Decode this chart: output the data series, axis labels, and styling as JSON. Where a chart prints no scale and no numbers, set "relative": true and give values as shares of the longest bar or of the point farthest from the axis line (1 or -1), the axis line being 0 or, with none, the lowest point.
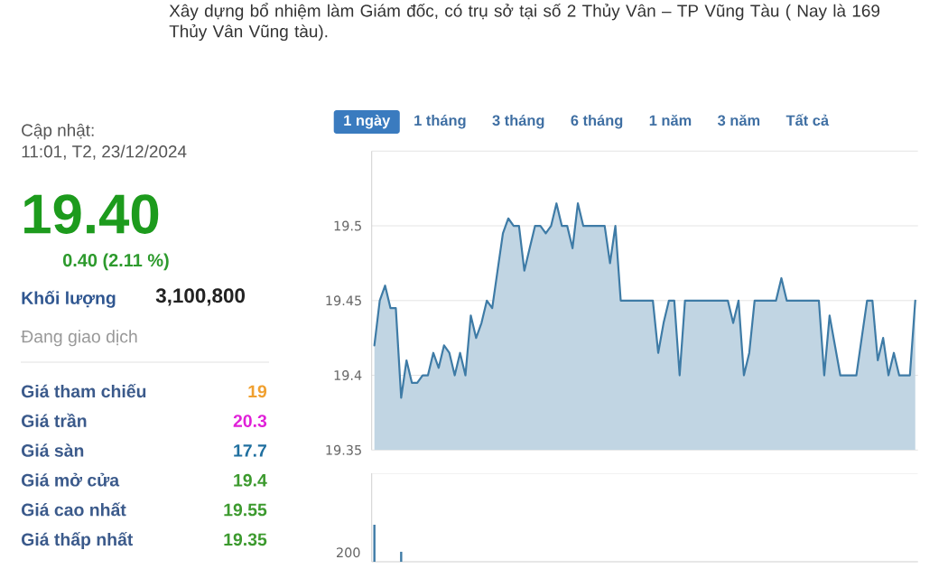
{
  "chart_data": [
    {
      "type": "other",
      "annotations": [
        "Xây dựng bổ nhiệm làm Giám đốc, có trụ sở tại số 2 Thủy Vân – TP Vũng Tàu ( Nay là 169 Thủy Vân Vũng tàu).",
        "Cập nhật:",
        "11:01, T2, 23/12/2024",
        "19.40",
        "0.40 (2.11 %)",
        "Khối lượng",
        "3,100,800",
        "Đang giao dịch"
      ],
      "categories": [
        "Giá tham chiếu",
        "Giá trần",
        "Giá sàn",
        "Giá mở cửa",
        "Giá cao nhất",
        "Giá thấp nhất"
      ],
      "values": [
        19,
        20.3,
        17.7,
        19.4,
        19.55,
        19.35
      ],
      "colors": [
        "#f0a030",
        "#e020d8",
        "#1f6f9f",
        "#3c9a2e",
        "#3c9a2e",
        "#3c9a2e"
      ],
      "data_labels": true
    },
    {
      "type": "area",
      "annotations": [
        "1 ngày",
        "1 tháng",
        "3 tháng",
        "6 tháng",
        "1 năm",
        "3 năm",
        "Tất cả"
      ],
      "categories": [
        null,
        null,
        null,
        null,
        null,
        null,
        null,
        null,
        null,
        null,
        null,
        null,
        null,
        null,
        null,
        null,
        null,
        null,
        null,
        null,
        null,
        null,
        null,
        null,
        null,
        null,
        null,
        null,
        null,
        null,
        null,
        null,
        null,
        null,
        null,
        null,
        null,
        null,
        null,
        null,
        null,
        null,
        null,
        null,
        null,
        null,
        null,
        null,
        null,
        null,
        null,
        null,
        null,
        null,
        null,
        null,
        null,
        null,
        null,
        null,
        null,
        null,
        null,
        null,
        null,
        null,
        null,
        null,
        null,
        null,
        null,
        null,
        null,
        null,
        null,
        null,
        null,
        null,
        null,
        null,
        null,
        null,
        null,
        null,
        null,
        null,
        null,
        null,
        null,
        null,
        null,
        null,
        null,
        null,
        null,
        null,
        null,
        null,
        null,
        null,
        null,
        null
      ],
      "values": [
        19.42,
        19.45,
        19.46,
        19.445,
        19.445,
        19.385,
        19.41,
        19.395,
        19.395,
        19.4,
        19.4,
        19.415,
        19.405,
        19.42,
        19.415,
        19.4,
        19.415,
        19.4,
        19.44,
        19.425,
        19.435,
        19.45,
        19.445,
        19.47,
        19.495,
        19.505,
        19.5,
        19.5,
        19.47,
        19.485,
        19.5,
        19.5,
        19.495,
        19.5,
        19.515,
        19.5,
        19.5,
        19.485,
        19.515,
        19.5,
        19.5,
        19.5,
        19.5,
        19.5,
        19.475,
        19.5,
        19.45,
        19.45,
        19.45,
        19.45,
        19.45,
        19.45,
        19.45,
        19.415,
        19.435,
        19.45,
        19.45,
        19.4,
        19.45,
        19.45,
        19.45,
        19.45,
        19.45,
        19.45,
        19.45,
        19.45,
        19.45,
        19.435,
        19.45,
        19.4,
        19.415,
        19.45,
        19.45,
        19.45,
        19.45,
        19.45,
        19.465,
        19.45,
        19.45,
        19.45,
        19.45,
        19.45,
        19.45,
        19.45,
        19.4,
        19.44,
        19.42,
        19.4,
        19.4,
        19.4,
        19.4,
        19.425,
        19.45,
        19.45,
        19.41,
        19.425,
        19.4,
        19.415,
        19.4,
        19.4,
        19.4,
        19.45
      ],
      "color": "#3e7ba6",
      "ylim": [
        19.35,
        19.55
      ],
      "yticks": [
        19.35,
        19.4,
        19.45,
        19.5,
        {
          "value": 19.55,
          "label": null
        }
      ],
      "grid": "y",
      "tick_labels": "y"
    },
    {
      "type": "bar",
      "relative": true,
      "annotations": [
        "200"
      ],
      "categories": [
        null,
        null,
        null,
        null,
        null,
        null,
        null,
        null,
        null,
        null,
        null,
        null,
        null,
        null,
        null,
        null,
        null,
        null,
        null,
        null,
        null,
        null,
        null,
        null,
        null,
        null,
        null,
        null,
        null,
        null,
        null,
        null,
        null,
        null,
        null,
        null,
        null,
        null,
        null,
        null,
        null,
        null,
        null,
        null,
        null,
        null,
        null,
        null,
        null,
        null,
        null,
        null,
        null,
        null,
        null,
        null,
        null,
        null,
        null,
        null,
        null,
        null,
        null,
        null,
        null,
        null,
        null,
        null,
        null,
        null,
        null,
        null,
        null,
        null,
        null,
        null,
        null,
        null,
        null,
        null,
        null,
        null,
        null,
        null,
        null,
        null,
        null,
        null,
        null,
        null,
        null,
        null,
        null,
        null,
        null,
        null,
        null,
        null,
        null,
        null,
        null,
        null
      ],
      "values": [
        1,
        null,
        null,
        null,
        null,
        0.27,
        null,
        null,
        null,
        null,
        null,
        null,
        null,
        null,
        null,
        null,
        null,
        null,
        null,
        null,
        null,
        null,
        null,
        null,
        null,
        null,
        null,
        null,
        null,
        null,
        null,
        null,
        null,
        null,
        null,
        null,
        null,
        null,
        null,
        null,
        null,
        null,
        null,
        null,
        null,
        null,
        null,
        null,
        null,
        null,
        null,
        null,
        null,
        null,
        null,
        null,
        null,
        null,
        null,
        null,
        null,
        null,
        null,
        null,
        null,
        null,
        null,
        null,
        null,
        null,
        null,
        null,
        null,
        null,
        null,
        null,
        null,
        null,
        null,
        null,
        null,
        null,
        null,
        null,
        null,
        null,
        null,
        null,
        null,
        null,
        null,
        null,
        null,
        null,
        null,
        null,
        null,
        null,
        null,
        null,
        null,
        null
      ],
      "color": "#3e7ba6"
    }
  ]
}
